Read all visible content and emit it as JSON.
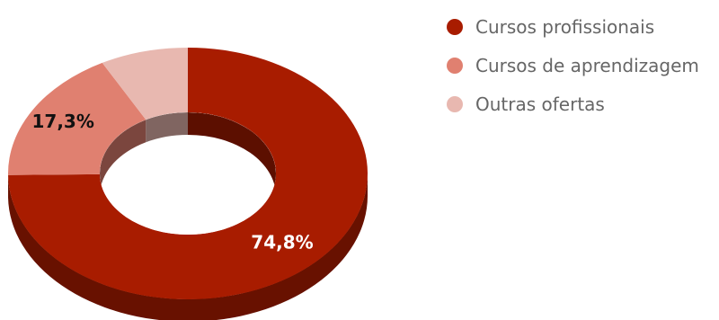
{
  "chart_data": {
    "type": "pie",
    "variant": "donut-3d",
    "categories": [
      "Cursos profissionais",
      "Cursos de aprendizagem",
      "Outras ofertas"
    ],
    "values": [
      74.8,
      17.3,
      7.9
    ],
    "data_labels": [
      "74,8%",
      "17,3%",
      ""
    ],
    "colors": [
      "#A81C00",
      "#E08070",
      "#E8B8B0"
    ],
    "legend_position": "top-right",
    "title": ""
  }
}
